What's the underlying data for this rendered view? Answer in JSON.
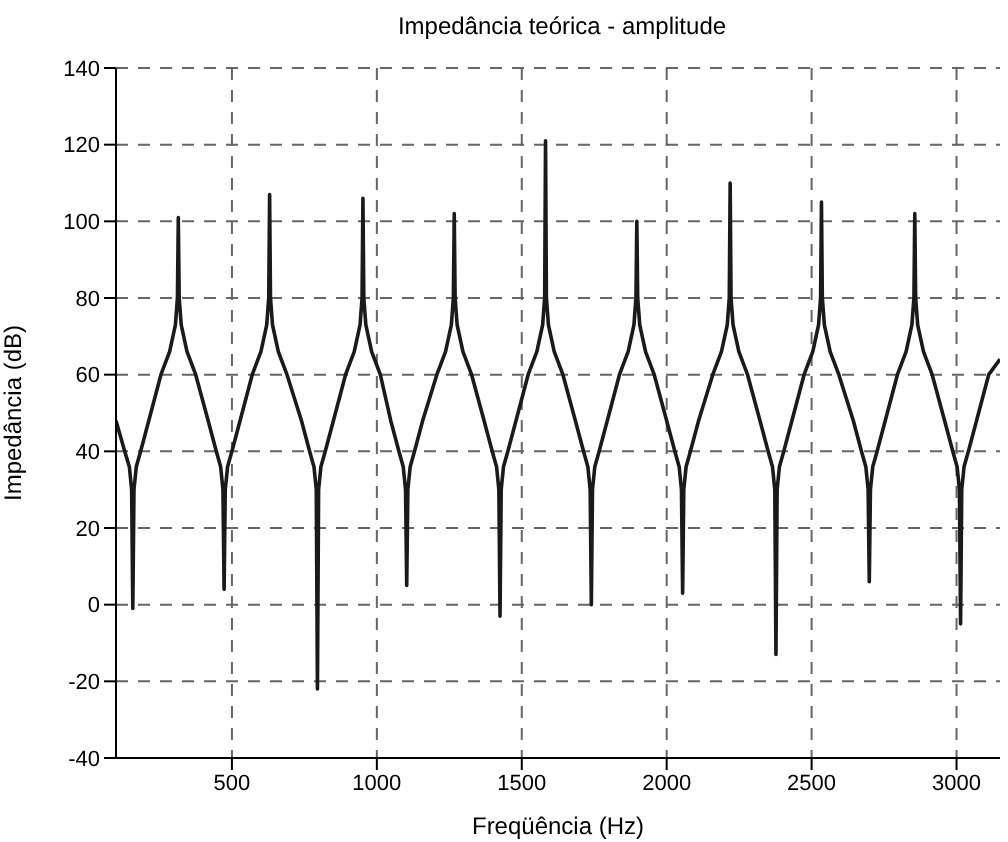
{
  "chart_data": {
    "type": "line",
    "title": "Impedância teórica - amplitude",
    "xlabel": "Freqüência  (Hz)",
    "ylabel": "Impedância (dB)",
    "xlim": [
      100,
      3150
    ],
    "xticks": [
      500,
      1000,
      1500,
      2000,
      2500,
      3000
    ],
    "ylim": [
      -40,
      140
    ],
    "yticks": [
      -40,
      -20,
      0,
      20,
      40,
      60,
      80,
      100,
      120,
      140
    ],
    "grid": true,
    "legend": false,
    "marker": "none",
    "line_style": "solid",
    "series": [
      {
        "color": "#1a1a1a",
        "x": [
          100,
          130,
          146,
          154,
          158,
          162,
          170,
          185,
          213,
          255,
          285,
          305,
          312,
          315,
          318,
          325,
          345,
          375,
          418,
          446,
          461,
          469,
          473,
          477,
          485,
          500,
          528,
          570,
          600,
          620,
          627,
          630,
          633,
          640,
          660,
          690,
          740,
          768,
          783,
          791,
          795,
          799,
          807,
          822,
          850,
          892,
          922,
          942,
          949,
          952,
          955,
          962,
          982,
          1012,
          1048,
          1076,
          1091,
          1099,
          1103,
          1107,
          1115,
          1130,
          1158,
          1207,
          1237,
          1257,
          1264,
          1267,
          1270,
          1277,
          1297,
          1327,
          1370,
          1398,
          1413,
          1421,
          1425,
          1429,
          1437,
          1452,
          1480,
          1522,
          1552,
          1572,
          1579,
          1582,
          1585,
          1592,
          1612,
          1642,
          1685,
          1713,
          1728,
          1736,
          1740,
          1744,
          1752,
          1767,
          1795,
          1837,
          1867,
          1887,
          1894,
          1897,
          1900,
          1907,
          1927,
          1957,
          2000,
          2028,
          2043,
          2051,
          2055,
          2059,
          2067,
          2082,
          2110,
          2159,
          2189,
          2209,
          2216,
          2219,
          2222,
          2229,
          2249,
          2279,
          2322,
          2350,
          2365,
          2373,
          2377,
          2381,
          2389,
          2404,
          2432,
          2474,
          2504,
          2524,
          2531,
          2534,
          2537,
          2544,
          2564,
          2594,
          2644,
          2672,
          2687,
          2695,
          2699,
          2703,
          2711,
          2726,
          2754,
          2796,
          2826,
          2846,
          2853,
          2856,
          2859,
          2866,
          2886,
          2916,
          2959,
          2987,
          3002,
          3010,
          3014,
          3018,
          3026,
          3041,
          3069,
          3111,
          3150
        ],
        "values": [
          48,
          40,
          36,
          30,
          -1,
          30,
          36,
          40,
          48,
          60,
          66,
          73,
          80,
          101,
          80,
          73,
          66,
          60,
          48,
          40,
          36,
          30,
          4,
          30,
          36,
          40,
          48,
          60,
          66,
          73,
          80,
          107,
          80,
          73,
          66,
          60,
          48,
          40,
          36,
          30,
          -22,
          30,
          36,
          40,
          48,
          60,
          66,
          73,
          80,
          106,
          80,
          73,
          66,
          60,
          48,
          40,
          36,
          30,
          5,
          30,
          36,
          40,
          48,
          60,
          66,
          73,
          80,
          102,
          80,
          73,
          66,
          60,
          48,
          40,
          36,
          30,
          -3,
          30,
          36,
          40,
          48,
          60,
          66,
          73,
          80,
          121,
          80,
          73,
          66,
          60,
          48,
          40,
          36,
          30,
          0,
          30,
          36,
          40,
          48,
          60,
          66,
          73,
          80,
          100,
          80,
          73,
          66,
          60,
          48,
          40,
          36,
          30,
          3,
          30,
          36,
          40,
          48,
          60,
          66,
          73,
          80,
          110,
          80,
          73,
          66,
          60,
          48,
          40,
          36,
          30,
          -13,
          30,
          36,
          40,
          48,
          60,
          66,
          73,
          80,
          105,
          80,
          73,
          66,
          60,
          48,
          40,
          36,
          30,
          6,
          30,
          36,
          40,
          48,
          60,
          66,
          73,
          80,
          102,
          80,
          73,
          66,
          60,
          48,
          40,
          36,
          30,
          -5,
          30,
          36,
          40,
          48,
          60,
          64
        ]
      }
    ]
  }
}
